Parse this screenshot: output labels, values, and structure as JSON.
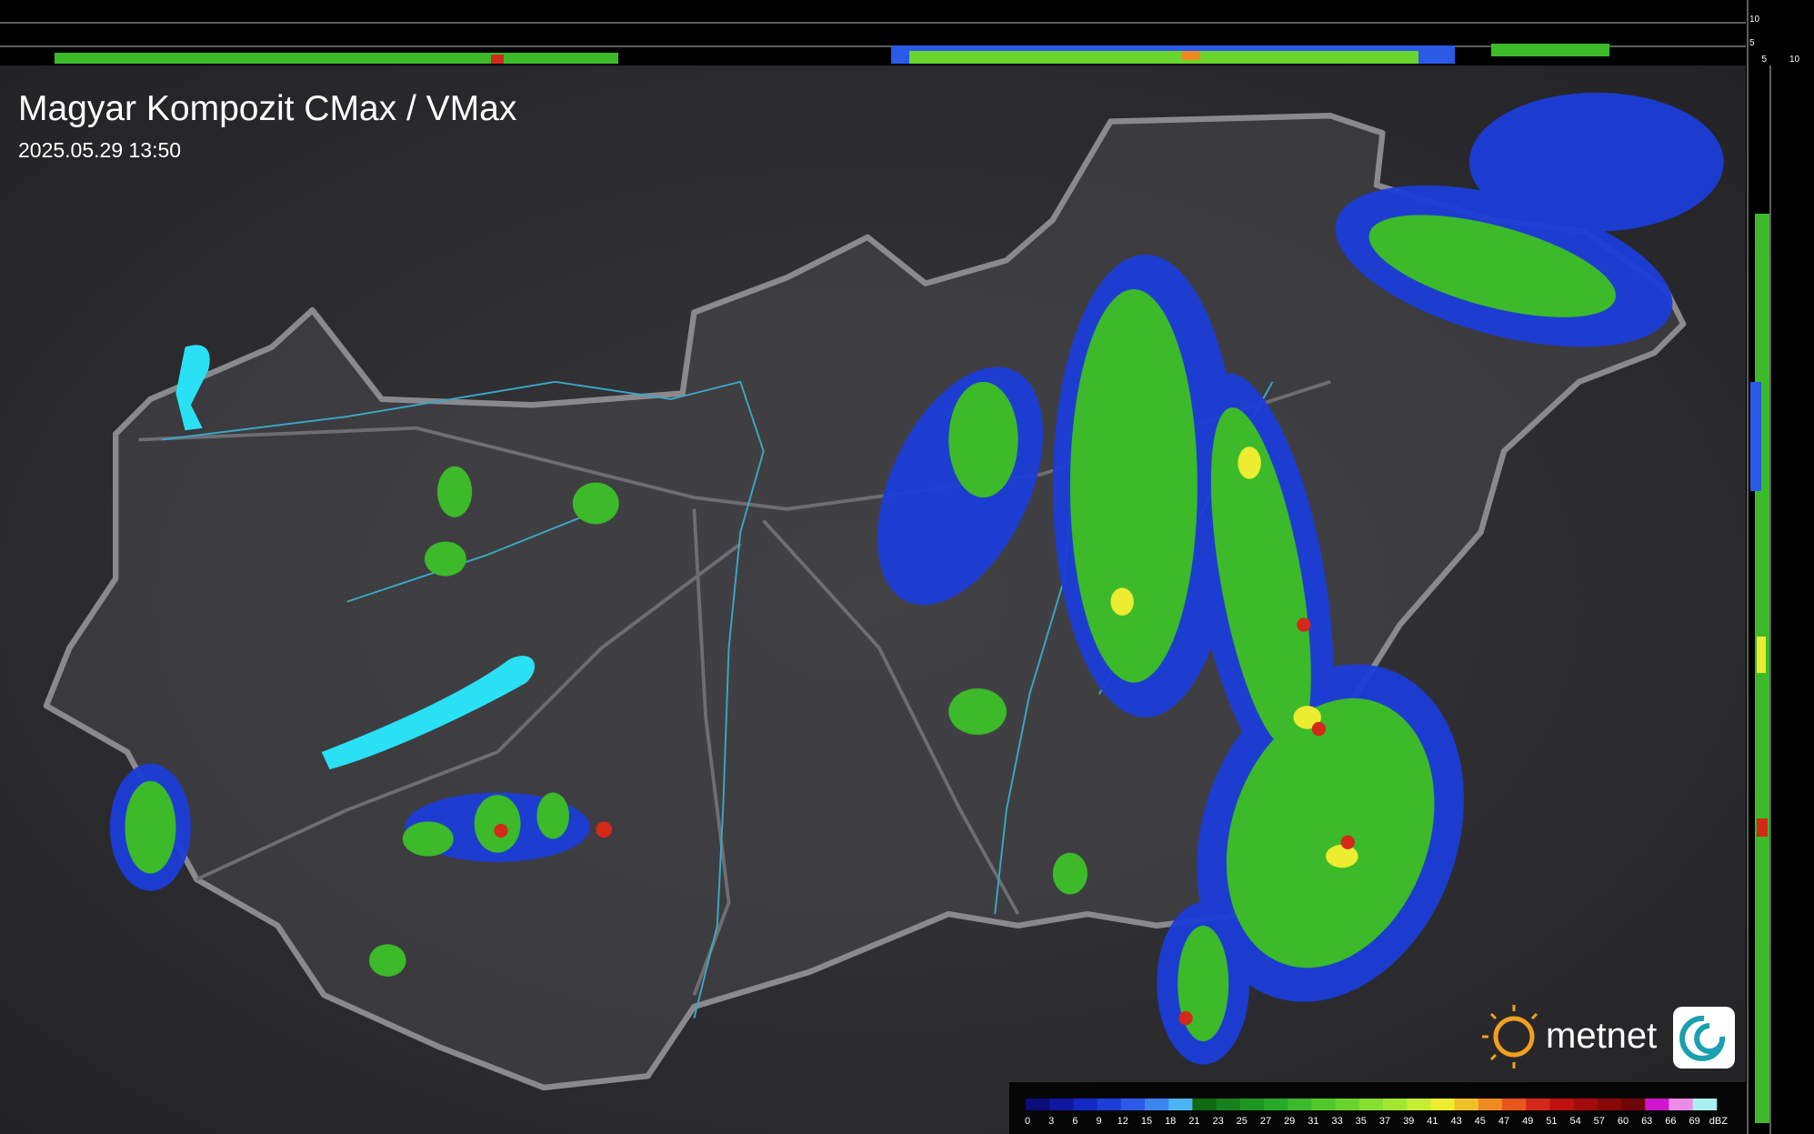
{
  "header": {
    "title": "Magyar Kompozit CMax / VMax",
    "timestamp": "2025.05.29 13:50"
  },
  "profile": {
    "top_labels": [
      "10",
      "5"
    ],
    "side_labels": [
      "5",
      "10"
    ]
  },
  "logo": {
    "text": "metnet"
  },
  "legend": {
    "unit": "dBZ",
    "labels": [
      "0",
      "3",
      "6",
      "9",
      "12",
      "15",
      "18",
      "21",
      "23",
      "25",
      "27",
      "29",
      "31",
      "33",
      "35",
      "37",
      "39",
      "41",
      "43",
      "45",
      "47",
      "49",
      "51",
      "54",
      "57",
      "60",
      "63",
      "66",
      "69"
    ],
    "colors": [
      "#0c0c7a",
      "#0f16a0",
      "#1428c4",
      "#1c3ed8",
      "#2a5ae6",
      "#3a86ee",
      "#4cb4f4",
      "#0f6a12",
      "#16801a",
      "#1e9622",
      "#28aa28",
      "#3cba2a",
      "#52c82c",
      "#6ad42e",
      "#86de30",
      "#a2e632",
      "#c6ec34",
      "#ecec30",
      "#f0c028",
      "#ee8a20",
      "#e8561a",
      "#d42818",
      "#c01010",
      "#a40c0c",
      "#880808",
      "#6e0606",
      "#d014d0",
      "#ec8ce6",
      "#a8f0f4"
    ]
  }
}
